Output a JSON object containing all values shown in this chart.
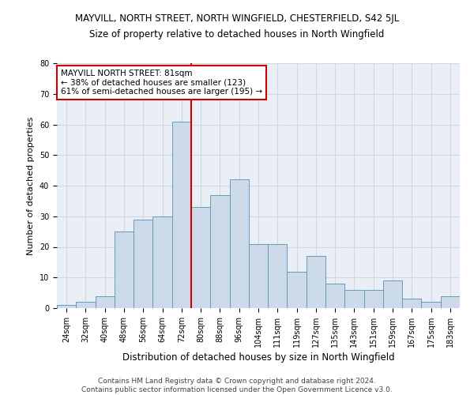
{
  "title": "MAYVILL, NORTH STREET, NORTH WINGFIELD, CHESTERFIELD, S42 5JL",
  "subtitle": "Size of property relative to detached houses in North Wingfield",
  "xlabel": "Distribution of detached houses by size in North Wingfield",
  "ylabel": "Number of detached properties",
  "categories": [
    "24sqm",
    "32sqm",
    "40sqm",
    "48sqm",
    "56sqm",
    "64sqm",
    "72sqm",
    "80sqm",
    "88sqm",
    "96sqm",
    "104sqm",
    "111sqm",
    "119sqm",
    "127sqm",
    "135sqm",
    "143sqm",
    "151sqm",
    "159sqm",
    "167sqm",
    "175sqm",
    "183sqm"
  ],
  "values": [
    1,
    2,
    4,
    25,
    29,
    30,
    61,
    33,
    37,
    42,
    21,
    21,
    12,
    17,
    8,
    6,
    6,
    9,
    3,
    2,
    4
  ],
  "bar_color": "#ccdaea",
  "bar_edge_color": "#6699bb",
  "highlight_line_color": "#cc0000",
  "annotation_text": "MAYVILL NORTH STREET: 81sqm\n← 38% of detached houses are smaller (123)\n61% of semi-detached houses are larger (195) →",
  "annotation_box_color": "#ffffff",
  "annotation_box_edge_color": "#cc0000",
  "ylim": [
    0,
    80
  ],
  "yticks": [
    0,
    10,
    20,
    30,
    40,
    50,
    60,
    70,
    80
  ],
  "grid_color": "#d0d8e8",
  "background_color": "#eaeff5",
  "footer_line1": "Contains HM Land Registry data © Crown copyright and database right 2024.",
  "footer_line2": "Contains public sector information licensed under the Open Government Licence v3.0.",
  "title_fontsize": 8.5,
  "subtitle_fontsize": 8.5,
  "xlabel_fontsize": 8.5,
  "ylabel_fontsize": 8,
  "tick_fontsize": 7,
  "annotation_fontsize": 7.5,
  "footer_fontsize": 6.5
}
